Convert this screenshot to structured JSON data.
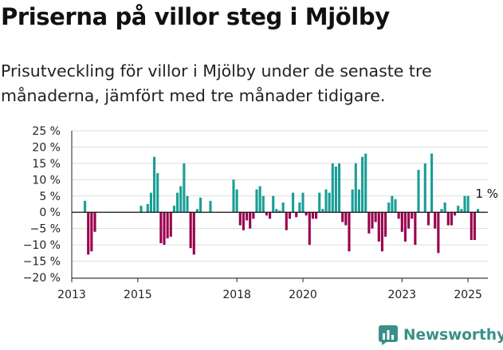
{
  "header": {
    "title": "Priserna på villor steg i Mjölby",
    "subtitle": "Prisutveckling för villor i Mjölby under de senaste tre månaderna, jämfört med tre månader tidigare."
  },
  "brand": {
    "name": "Newsworthy"
  },
  "colors": {
    "positive": "#1a9e96",
    "negative": "#99004d",
    "axis": "#222222",
    "grid": "#dddddd",
    "brand": "#3a8f8a"
  },
  "chart_data": {
    "type": "bar",
    "title": "Priserna på villor steg i Mjölby",
    "xlabel": "",
    "ylabel": "",
    "ylim": [
      -20,
      25
    ],
    "xlim": [
      2013,
      2025.6
    ],
    "x_ticks": [
      2013,
      2015,
      2018,
      2020,
      2023,
      2025
    ],
    "y_ticks": [
      -20,
      -15,
      -10,
      -5,
      0,
      5,
      10,
      15,
      20,
      25
    ],
    "y_tick_labels": [
      "−20 %",
      "−15 %",
      "−10 %",
      "−5 %",
      "0 %",
      "5 %",
      "10 %",
      "15 %",
      "20 %",
      "25 %"
    ],
    "annotation": {
      "text": "1 %",
      "x": 2025.25,
      "value": 1
    },
    "x": [
      2013.4,
      2013.5,
      2013.6,
      2013.7,
      2015.1,
      2015.3,
      2015.4,
      2015.5,
      2015.6,
      2015.7,
      2015.8,
      2015.9,
      2016.0,
      2016.1,
      2016.2,
      2016.3,
      2016.4,
      2016.5,
      2016.6,
      2016.7,
      2016.8,
      2016.9,
      2017.2,
      2017.9,
      2018.0,
      2018.1,
      2018.2,
      2018.3,
      2018.4,
      2018.5,
      2018.6,
      2018.7,
      2018.8,
      2018.9,
      2019.0,
      2019.1,
      2019.2,
      2019.3,
      2019.4,
      2019.5,
      2019.6,
      2019.7,
      2019.8,
      2019.9,
      2020.0,
      2020.1,
      2020.2,
      2020.3,
      2020.4,
      2020.5,
      2020.6,
      2020.7,
      2020.8,
      2020.9,
      2021.0,
      2021.1,
      2021.2,
      2021.3,
      2021.4,
      2021.5,
      2021.6,
      2021.7,
      2021.8,
      2021.9,
      2022.0,
      2022.1,
      2022.2,
      2022.3,
      2022.4,
      2022.5,
      2022.6,
      2022.7,
      2022.8,
      2022.9,
      2023.0,
      2023.1,
      2023.2,
      2023.3,
      2023.4,
      2023.5,
      2023.6,
      2023.7,
      2023.8,
      2023.9,
      2024.0,
      2024.1,
      2024.2,
      2024.3,
      2024.4,
      2024.5,
      2024.6,
      2024.7,
      2024.8,
      2024.9,
      2025.0,
      2025.1,
      2025.2,
      2025.3
    ],
    "values": [
      3.5,
      -13,
      -12,
      -6,
      2,
      2.5,
      6,
      17,
      12,
      -9.5,
      -10,
      -8,
      -7.5,
      2,
      6,
      8,
      15,
      5,
      -11,
      -13,
      1,
      4.5,
      3.5,
      10,
      7,
      -4,
      -5.5,
      -2.5,
      -5,
      -2,
      7,
      8,
      5,
      -1,
      -2,
      5,
      1,
      0.5,
      3,
      -5.5,
      -2,
      6,
      -1.5,
      3,
      6,
      -1,
      -10,
      -2,
      -2,
      6,
      1,
      7,
      6,
      15,
      14,
      15,
      -3,
      -4,
      -12,
      7,
      15,
      7,
      17,
      18,
      -6.5,
      -5,
      -3,
      -9,
      -12,
      -7.5,
      3,
      5,
      4,
      -2,
      -6,
      -9,
      -5,
      -2,
      -10,
      13,
      0,
      15,
      -4,
      18,
      -5,
      -12.5,
      1,
      3,
      -4,
      -4,
      -1,
      2,
      1,
      5,
      5,
      -8.5,
      -8.5,
      1
    ]
  }
}
